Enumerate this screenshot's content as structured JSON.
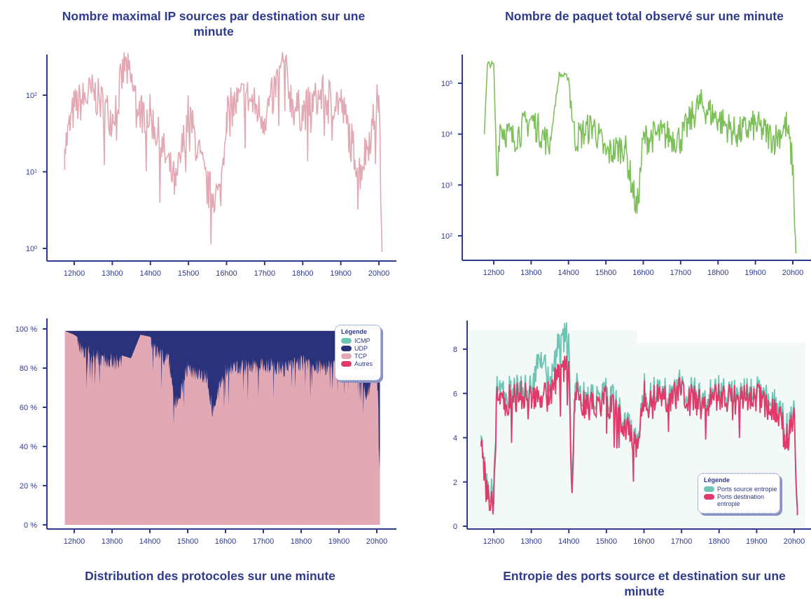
{
  "titles": {
    "tl": "Nombre maximal IP sources par destination sur une minute",
    "tr": "Nombre de paquet total observé sur une minute",
    "bl": "Distribution des protocoles sur une minute",
    "br": "Entropie des ports source et destination sur une minute"
  },
  "colors": {
    "axis": "#2e3b8c",
    "pink": "#e2a8b3",
    "green": "#7dc05a",
    "navy": "#2a327c",
    "teal": "#6cc6b4",
    "crimson": "#e0396a",
    "panel_bg": "#f2f9f7"
  },
  "chart_data": [
    {
      "id": "max_ip_sources",
      "type": "line",
      "title": "Nombre maximal IP sources par destination sur une minute",
      "yscale": "log",
      "x_ticks": [
        "12h00",
        "13h00",
        "14h00",
        "15h00",
        "16h00",
        "17h00",
        "18h00",
        "19h00",
        "20h00"
      ],
      "y_ticks": [
        "10^0",
        "10^1",
        "10^2"
      ],
      "x": [
        "11h45",
        "12h00",
        "12h30",
        "13h00",
        "13h20",
        "13h45",
        "14h00",
        "14h40",
        "15h00",
        "15h30",
        "15h50",
        "16h00",
        "16h30",
        "17h00",
        "17h30",
        "17h45",
        "18h00",
        "18h30",
        "19h00",
        "19h30",
        "19h50",
        "20h00",
        "20h05"
      ],
      "values": [
        20,
        70,
        110,
        50,
        250,
        60,
        55,
        6.5,
        60,
        5.8,
        4.8,
        60,
        100,
        50,
        260,
        70,
        60,
        100,
        80,
        10,
        40,
        100,
        0.9
      ],
      "series": [
        {
          "name": "",
          "color": "#e2a8b3"
        }
      ]
    },
    {
      "id": "total_packets",
      "type": "line",
      "title": "Nombre de paquet total observé sur une minute",
      "yscale": "log",
      "x_ticks": [
        "12h00",
        "13h00",
        "14h00",
        "15h00",
        "16h00",
        "17h00",
        "18h00",
        "19h00",
        "20h00"
      ],
      "y_ticks": [
        "10^2",
        "10^3",
        "10^4",
        "10^5"
      ],
      "x": [
        "11h45",
        "11h50",
        "12h00",
        "12h05",
        "12h10",
        "12h30",
        "13h00",
        "13h30",
        "13h45",
        "14h00",
        "14h10",
        "14h40",
        "15h00",
        "15h30",
        "15h50",
        "16h00",
        "16h30",
        "17h00",
        "17h30",
        "18h00",
        "18h30",
        "19h00",
        "19h30",
        "19h50",
        "20h00",
        "20h05"
      ],
      "values": [
        11000,
        240000,
        230000,
        1500,
        15000,
        8000,
        20000,
        6000,
        150000,
        130000,
        8000,
        15000,
        4000,
        6000,
        300,
        8000,
        10000,
        8000,
        40000,
        20000,
        10000,
        15000,
        8000,
        15000,
        2500,
        45
      ],
      "series": [
        {
          "name": "",
          "color": "#7dc05a"
        }
      ]
    },
    {
      "id": "protocol_distribution",
      "type": "area",
      "title": "Distribution des protocoles sur une minute",
      "y_ticks": [
        "0 %",
        "20 %",
        "40 %",
        "60 %",
        "80 %",
        "100 %"
      ],
      "x_ticks": [
        "12h00",
        "13h00",
        "14h00",
        "15h00",
        "16h00",
        "17h00",
        "18h00",
        "19h00",
        "20h00"
      ],
      "ylim": [
        0,
        100
      ],
      "x": [
        "11h45",
        "12h00",
        "12h30",
        "13h00",
        "13h30",
        "13h45",
        "14h00",
        "14h30",
        "14h40",
        "15h00",
        "15h30",
        "15h40",
        "16h00",
        "16h30",
        "17h00",
        "17h30",
        "18h00",
        "18h30",
        "19h00",
        "19h30",
        "19h45",
        "20h00",
        "20h05"
      ],
      "series": [
        {
          "name": "TCP",
          "values": [
            99,
            97,
            90,
            88,
            85,
            97,
            96,
            88,
            65,
            84,
            80,
            62,
            84,
            85,
            86,
            84,
            87,
            85,
            86,
            84,
            70,
            88,
            35
          ]
        },
        {
          "name": "UDP",
          "values": [
            1,
            3,
            10,
            12,
            15,
            3,
            4,
            12,
            35,
            16,
            20,
            38,
            16,
            15,
            14,
            16,
            13,
            15,
            14,
            16,
            30,
            12,
            65
          ]
        }
      ],
      "legend": {
        "title": "Légende",
        "position": "top-right",
        "items": [
          {
            "label": "ICMP",
            "color": "#6cc6b4"
          },
          {
            "label": "UDP",
            "color": "#2a327c"
          },
          {
            "label": "TCP",
            "color": "#e2a8b3"
          },
          {
            "label": "Autres",
            "color": "#e0396a"
          }
        ]
      }
    },
    {
      "id": "port_entropy",
      "type": "line",
      "title": "Entropie des ports source et destination sur une minute",
      "y_ticks": [
        "0",
        "2",
        "4",
        "6",
        "8"
      ],
      "x_ticks": [
        "12h00",
        "13h00",
        "14h00",
        "15h00",
        "16h00",
        "17h00",
        "18h00",
        "19h00",
        "20h00"
      ],
      "ylim": [
        0,
        9
      ],
      "x": [
        "11h40",
        "11h50",
        "12h00",
        "12h05",
        "12h10",
        "12h30",
        "13h00",
        "13h15",
        "13h30",
        "13h45",
        "14h00",
        "14h05",
        "14h10",
        "14h30",
        "15h00",
        "15h30",
        "15h50",
        "16h00",
        "16h30",
        "17h00",
        "17h30",
        "18h00",
        "18h30",
        "19h00",
        "19h30",
        "19h50",
        "20h00",
        "20h05"
      ],
      "series": [
        {
          "name": "Ports source entropie",
          "values": [
            3.6,
            1.2,
            1.5,
            6.3,
            5.8,
            6.0,
            6.2,
            7.6,
            6.1,
            8.4,
            8.2,
            2.0,
            6.3,
            5.4,
            5.9,
            4.6,
            3.6,
            6.0,
            5.8,
            6.2,
            5.6,
            6.0,
            5.8,
            5.9,
            5.4,
            4.2,
            5.4,
            0.5
          ]
        },
        {
          "name": "Ports destination entropie",
          "values": [
            3.6,
            1.2,
            1.0,
            6.1,
            5.5,
            5.8,
            6.0,
            5.8,
            5.9,
            7.1,
            7.0,
            1.5,
            6.0,
            5.3,
            5.7,
            4.5,
            3.5,
            5.9,
            5.7,
            6.1,
            5.5,
            5.9,
            5.7,
            5.8,
            5.2,
            4.0,
            5.2,
            0.5
          ]
        }
      ],
      "legend": {
        "title": "Légende",
        "position": "bottom-right",
        "items": [
          {
            "label": "Ports source entropie",
            "color": "#6cc6b4"
          },
          {
            "label": "Ports destination entropie",
            "color": "#e0396a"
          }
        ]
      }
    }
  ]
}
